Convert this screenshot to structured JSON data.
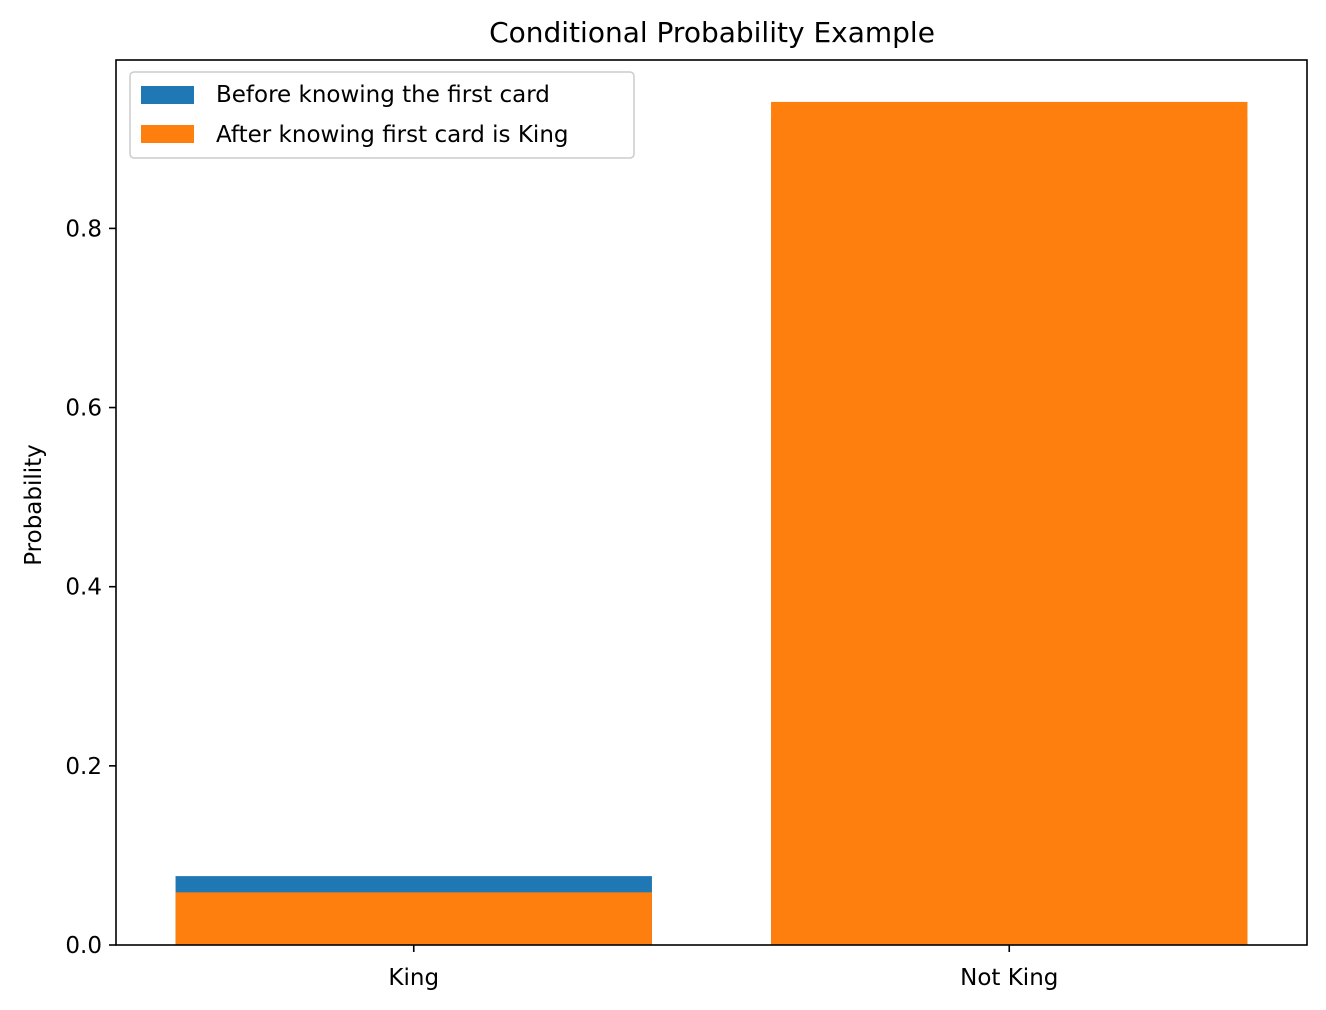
{
  "chart_data": {
    "type": "bar",
    "title": "Conditional Probability Example",
    "xlabel": "",
    "ylabel": "Probability",
    "categories": [
      "King",
      "Not King"
    ],
    "series": [
      {
        "name": "Before knowing the first card",
        "color": "#1f77b4",
        "values": [
          0.0769,
          0.9231
        ]
      },
      {
        "name": "After knowing first card is King",
        "color": "#ff7f0e",
        "values": [
          0.0588,
          0.9412
        ]
      }
    ],
    "ylim": [
      0,
      0.988
    ],
    "yticks": [
      "0.0",
      "0.2",
      "0.4",
      "0.6",
      "0.8"
    ],
    "ytick_values": [
      0,
      0.2,
      0.4,
      0.6,
      0.8
    ],
    "grid": false,
    "legend_position": "top-left",
    "overlay": true
  }
}
